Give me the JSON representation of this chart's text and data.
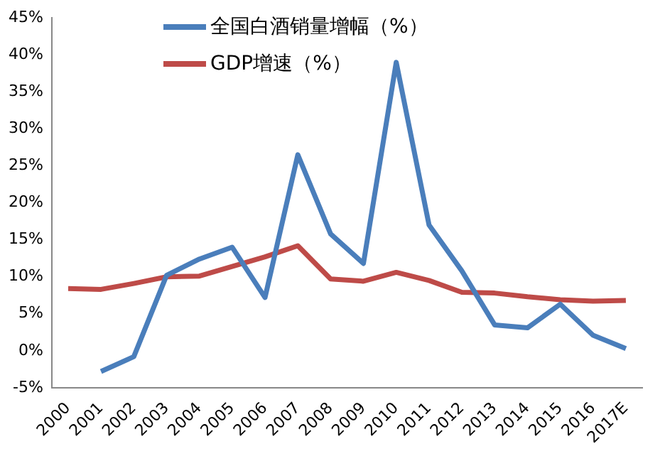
{
  "chart_data": {
    "type": "line",
    "categories": [
      "2000",
      "2001",
      "2002",
      "2003",
      "2004",
      "2005",
      "2006",
      "2007",
      "2008",
      "2009",
      "2010",
      "2011",
      "2012",
      "2013",
      "2014",
      "2015",
      "2016",
      "2017E"
    ],
    "series": [
      {
        "name": "全国白酒销量增幅（%）",
        "color": "#4a7ebb",
        "values": [
          null,
          -2.8,
          -0.8,
          10.2,
          12.4,
          14,
          7.2,
          26.5,
          15.8,
          11.8,
          39,
          17,
          10.8,
          3.5,
          3.1,
          6.3,
          2.1,
          0.3
        ]
      },
      {
        "name": "GDP增速（%）",
        "color": "#be4b48",
        "values": [
          8.4,
          8.3,
          9.1,
          10.0,
          10.1,
          11.4,
          12.7,
          14.2,
          9.7,
          9.4,
          10.6,
          9.5,
          7.9,
          7.8,
          7.3,
          6.9,
          6.7,
          6.8
        ]
      }
    ],
    "ylim": [
      -5,
      45
    ],
    "yticks": [
      {
        "value": -5,
        "label": "-5%"
      },
      {
        "value": 0,
        "label": "0%"
      },
      {
        "value": 5,
        "label": "5%"
      },
      {
        "value": 10,
        "label": "10%"
      },
      {
        "value": 15,
        "label": "15%"
      },
      {
        "value": 20,
        "label": "20%"
      },
      {
        "value": 25,
        "label": "25%"
      },
      {
        "value": 30,
        "label": "30%"
      },
      {
        "value": 35,
        "label": "35%"
      },
      {
        "value": 40,
        "label": "40%"
      },
      {
        "value": 45,
        "label": "45%"
      }
    ],
    "grid": false,
    "legend": "top",
    "marker": "none",
    "line_style": "solid"
  }
}
